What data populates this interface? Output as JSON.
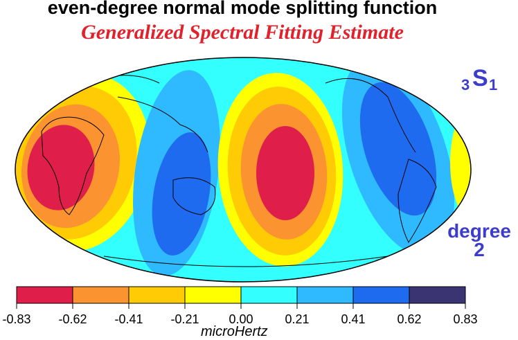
{
  "title": "even-degree normal mode splitting function",
  "subtitle": "Generalized Spectral Fitting Estimate",
  "mode_label": {
    "overtone": "3",
    "letter": "S",
    "degree_index": "1"
  },
  "degree_label": {
    "word": "degree",
    "value": "2"
  },
  "colorbar": {
    "unit": "microHertz",
    "ticks": [
      "-0.83",
      "-0.62",
      "-0.41",
      "-0.21",
      "0.00",
      "0.21",
      "0.41",
      "0.62",
      "0.83"
    ],
    "colors": [
      "#e01e4a",
      "#fb9330",
      "#ffcb05",
      "#ffff00",
      "#33ffff",
      "#2fbaff",
      "#1e6bf0",
      "#3a3473"
    ]
  },
  "map": {
    "projection": "Mollweide",
    "levels": [
      {
        "value": "-0.83",
        "color": "#e01e4a"
      },
      {
        "value": "-0.62",
        "color": "#fb9330"
      },
      {
        "value": "-0.41",
        "color": "#ffcb05"
      },
      {
        "value": "-0.21",
        "color": "#ffff00"
      },
      {
        "value": "0.00",
        "color": "#33ffff"
      },
      {
        "value": "0.21",
        "color": "#2fbaff"
      },
      {
        "value": "0.41",
        "color": "#1e6bf0"
      }
    ]
  }
}
